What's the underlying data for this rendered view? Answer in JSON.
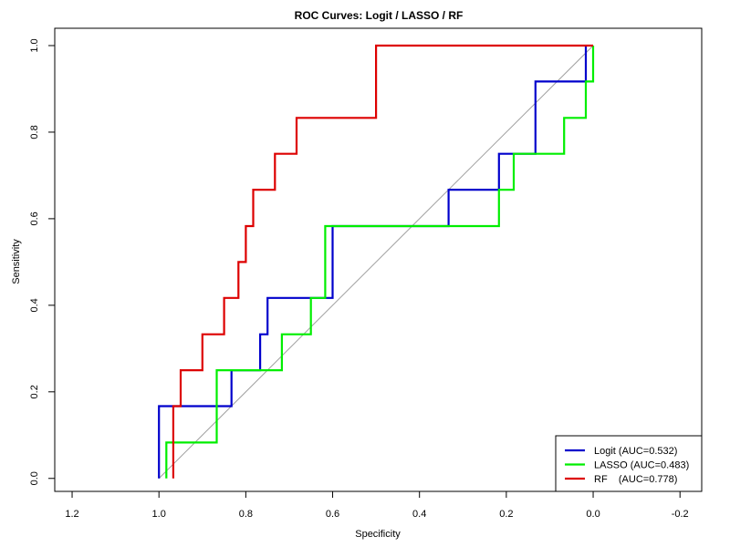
{
  "chart_data": {
    "type": "line",
    "title": "ROC Curves: Logit / LASSO / RF",
    "xlabel": "Specificity",
    "ylabel": "Sensitivity",
    "xlim": [
      1.24,
      -0.25
    ],
    "ylim": [
      -0.03,
      1.04
    ],
    "x_reversed": true,
    "grid": false,
    "legend_position": "bottom-right",
    "xticks": [
      1.2,
      1.0,
      0.8,
      0.6,
      0.4,
      0.2,
      0.0,
      -0.2
    ],
    "xtick_labels": [
      "1.2",
      "1.0",
      "0.8",
      "0.6",
      "0.4",
      "0.2",
      "0.0",
      "-0.2"
    ],
    "yticks": [
      0.0,
      0.2,
      0.4,
      0.6,
      0.8,
      1.0
    ],
    "ytick_labels": [
      "0.0",
      "0.2",
      "0.4",
      "0.6",
      "0.8",
      "1.0"
    ],
    "reference_line": {
      "from": [
        1.0,
        0.0
      ],
      "to": [
        0.0,
        1.0
      ],
      "color": "#a0a0a0"
    },
    "series": [
      {
        "name": "Logit (AUC=0.532)",
        "color": "#0000cc",
        "x": [
          1.0,
          1.0,
          0.833,
          0.833,
          0.767,
          0.767,
          0.75,
          0.75,
          0.6,
          0.6,
          0.333,
          0.333,
          0.217,
          0.217,
          0.133,
          0.133,
          0.017,
          0.017
        ],
        "y": [
          0.0,
          0.167,
          0.167,
          0.25,
          0.25,
          0.333,
          0.333,
          0.417,
          0.417,
          0.583,
          0.583,
          0.667,
          0.667,
          0.75,
          0.75,
          0.917,
          0.917,
          1.0
        ]
      },
      {
        "name": "LASSO (AUC=0.483)",
        "color": "#00ee00",
        "x": [
          0.983,
          0.983,
          0.867,
          0.867,
          0.717,
          0.717,
          0.65,
          0.65,
          0.617,
          0.617,
          0.217,
          0.217,
          0.183,
          0.183,
          0.067,
          0.067,
          0.017,
          0.017,
          0.0,
          0.0
        ],
        "y": [
          0.0,
          0.083,
          0.083,
          0.25,
          0.25,
          0.333,
          0.333,
          0.417,
          0.417,
          0.583,
          0.583,
          0.667,
          0.667,
          0.75,
          0.75,
          0.833,
          0.833,
          0.917,
          0.917,
          1.0
        ]
      },
      {
        "name": "RF    (AUC=0.778)",
        "color": "#dd0000",
        "x": [
          0.967,
          0.967,
          0.95,
          0.95,
          0.9,
          0.9,
          0.85,
          0.85,
          0.817,
          0.817,
          0.8,
          0.8,
          0.783,
          0.783,
          0.733,
          0.733,
          0.683,
          0.683,
          0.667,
          0.667,
          0.5,
          0.5,
          0.0
        ],
        "y": [
          0.0,
          0.167,
          0.167,
          0.25,
          0.25,
          0.333,
          0.333,
          0.417,
          0.417,
          0.5,
          0.5,
          0.583,
          0.583,
          0.667,
          0.667,
          0.75,
          0.75,
          0.833,
          0.833,
          0.833,
          0.833,
          1.0,
          1.0
        ]
      }
    ]
  }
}
